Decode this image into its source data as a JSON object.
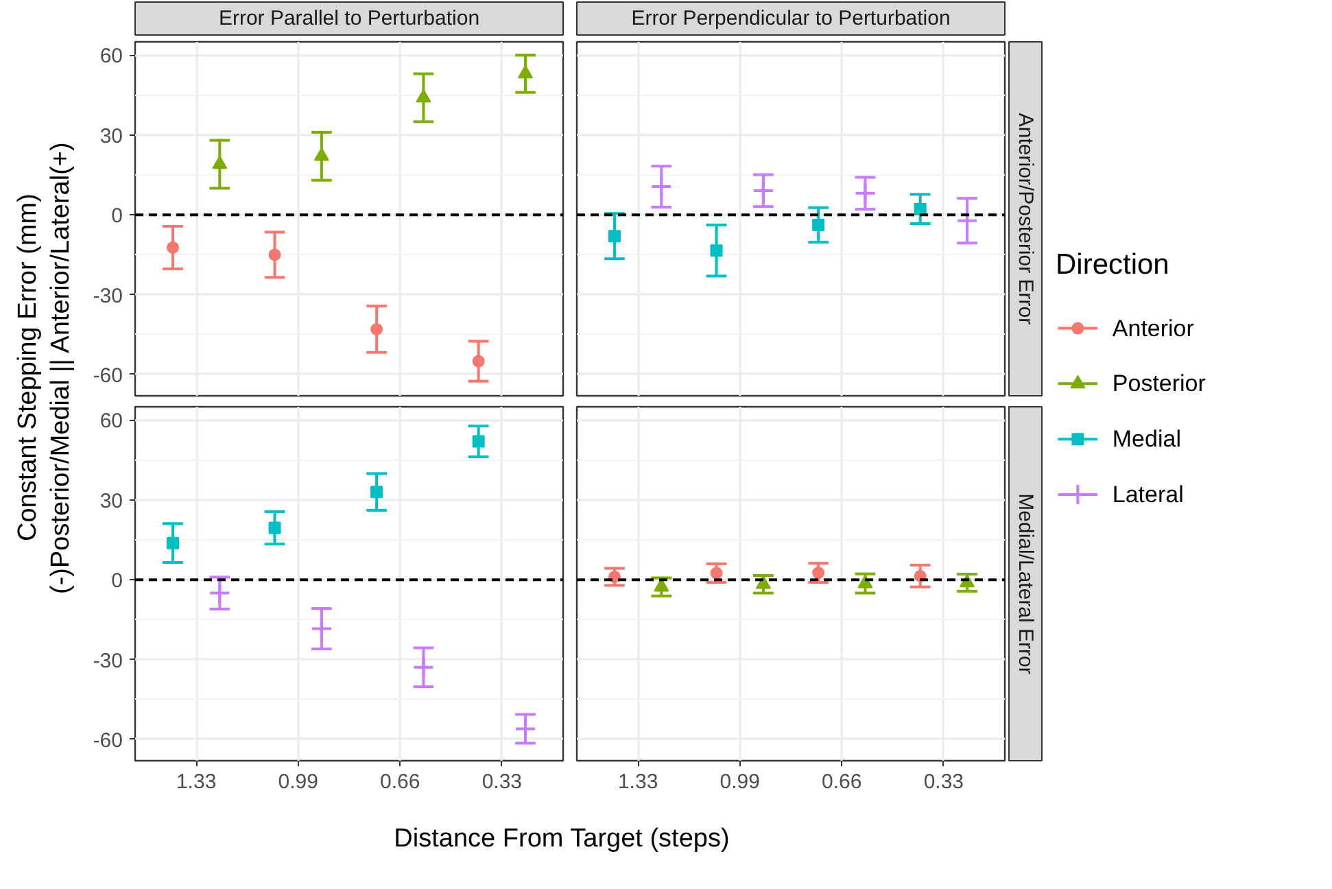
{
  "chart_data": [
    {
      "type": "scatter",
      "title": "Error Parallel to Perturbation",
      "legend": "right",
      "ylabel": "Constant Stepping Error (mm)\n(-)Posterior/Medial || Anterior/Lateral(+)",
      "categories": [
        "1.33",
        "0.99",
        "0.66",
        "0.33"
      ],
      "ylim": [
        -68,
        65
      ],
      "yticks": [
        -60,
        -30,
        0,
        30,
        60
      ],
      "grid": true,
      "tick_labels": "y",
      "ref_lines": [
        {
          "axis": "y",
          "value": 0,
          "color": "#000000",
          "line_style": "dashed"
        }
      ],
      "series": [
        {
          "name": "Anterior",
          "color": "#f8766d",
          "marker": "circle",
          "values": [
            -12.3,
            -15,
            -43,
            -55
          ],
          "errors": [
            8,
            8.5,
            8.7,
            7.5
          ]
        },
        {
          "name": "Posterior",
          "color": "#7cae00",
          "marker": "triangle",
          "values": [
            19,
            22,
            44,
            53
          ],
          "errors": [
            9,
            9,
            9,
            7
          ]
        }
      ]
    },
    {
      "type": "scatter",
      "title": "Error Perpendicular to Perturbation",
      "y2label": "Anterior/Posterior Error",
      "legend": "right",
      "legend_title": "Direction",
      "categories": [
        "1.33",
        "0.99",
        "0.66",
        "0.33"
      ],
      "ylim": [
        -68,
        65
      ],
      "yticks": [
        -60,
        -30,
        0,
        30,
        60
      ],
      "grid": true,
      "tick_labels": false,
      "ref_lines": [
        {
          "axis": "y",
          "value": 0,
          "color": "#000000",
          "line_style": "dashed"
        }
      ],
      "series": [
        {
          "name": "Medial",
          "color": "#00bfc4",
          "marker": "square",
          "values": [
            -8,
            -13.4,
            -3.8,
            2.2
          ],
          "errors": [
            8.5,
            9.6,
            6.5,
            5.5
          ]
        },
        {
          "name": "Lateral",
          "color": "#c77cff",
          "marker": "cross",
          "values": [
            10.6,
            9.1,
            8.1,
            -2.2
          ],
          "errors": [
            7.7,
            6,
            6,
            8.4
          ]
        }
      ]
    },
    {
      "type": "scatter",
      "xlabel": "Distance From Target (steps)",
      "categories": [
        "1.33",
        "0.99",
        "0.66",
        "0.33"
      ],
      "ylim": [
        -68,
        65
      ],
      "yticks": [
        -60,
        -30,
        0,
        30,
        60
      ],
      "grid": true,
      "ref_lines": [
        {
          "axis": "y",
          "value": 0,
          "color": "#000000",
          "line_style": "dashed"
        }
      ],
      "series": [
        {
          "color": "#00bfc4",
          "marker": "square",
          "values": [
            13.8,
            19.5,
            33,
            52
          ],
          "errors": [
            7.3,
            6.1,
            6.9,
            5.8
          ]
        },
        {
          "color": "#c77cff",
          "marker": "cross",
          "values": [
            -5,
            -18.4,
            -32.9,
            -56
          ],
          "errors": [
            6,
            7.6,
            7.3,
            5.4
          ]
        }
      ]
    },
    {
      "type": "scatter",
      "y2label": "Medial/Lateral Error",
      "categories": [
        "1.33",
        "0.99",
        "0.66",
        "0.33"
      ],
      "ylim": [
        -68,
        65
      ],
      "yticks": [
        -60,
        -30,
        0,
        30,
        60
      ],
      "grid": true,
      "tick_labels": "x",
      "ref_lines": [
        {
          "axis": "y",
          "value": 0,
          "color": "#000000",
          "line_style": "dashed"
        }
      ],
      "series": [
        {
          "color": "#f8766d",
          "marker": "circle",
          "values": [
            1.1,
            2.5,
            2.6,
            1.4
          ],
          "errors": [
            3.2,
            3.5,
            3.6,
            4.1
          ]
        },
        {
          "color": "#7cae00",
          "marker": "triangle",
          "values": [
            -2.7,
            -1.7,
            -1.4,
            -1.1
          ],
          "errors": [
            3.4,
            3.3,
            3.6,
            3.2
          ]
        }
      ]
    }
  ]
}
